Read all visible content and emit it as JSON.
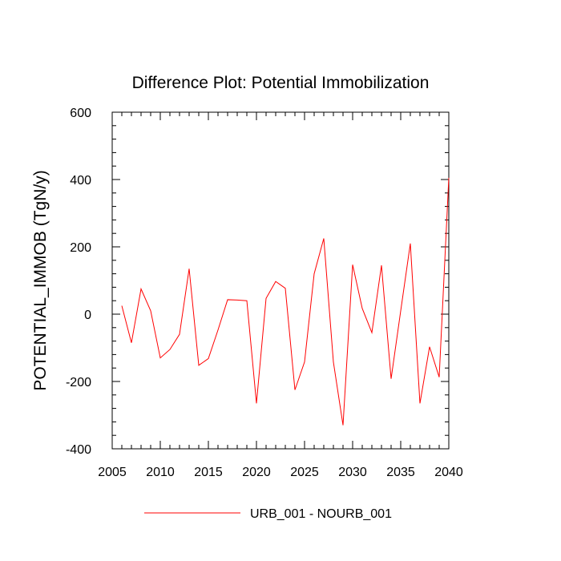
{
  "chart_data": {
    "type": "line",
    "title": "Difference Plot: Potential Immobilization",
    "xlabel": "",
    "ylabel": "POTENTIAL_IMMOB  (TgN/y)",
    "xlim": [
      2005,
      2040
    ],
    "ylim": [
      -400,
      600
    ],
    "x_ticks": [
      2005,
      2010,
      2015,
      2020,
      2025,
      2030,
      2035,
      2040
    ],
    "y_ticks": [
      -400,
      -200,
      0,
      200,
      400,
      600
    ],
    "x_minor_step": 1,
    "y_minor_step": 40,
    "grid": false,
    "legend_position": "bottom",
    "series": [
      {
        "name": "URB_001 - NOURB_001",
        "color": "#ff0000",
        "x": [
          2006,
          2007,
          2008,
          2009,
          2010,
          2011,
          2012,
          2013,
          2014,
          2015,
          2016,
          2017,
          2018,
          2019,
          2020,
          2021,
          2022,
          2023,
          2024,
          2025,
          2026,
          2027,
          2028,
          2029,
          2030,
          2031,
          2032,
          2033,
          2034,
          2035,
          2036,
          2037,
          2038,
          2039,
          2040
        ],
        "y": [
          25,
          -85,
          75,
          10,
          -130,
          -105,
          -60,
          135,
          -152,
          -132,
          -47,
          43,
          42,
          40,
          -265,
          47,
          97,
          77,
          -225,
          -142,
          120,
          225,
          -142,
          -330,
          147,
          17,
          -55,
          145,
          -192,
          10,
          210,
          -265,
          -97,
          -187,
          405
        ]
      }
    ]
  }
}
